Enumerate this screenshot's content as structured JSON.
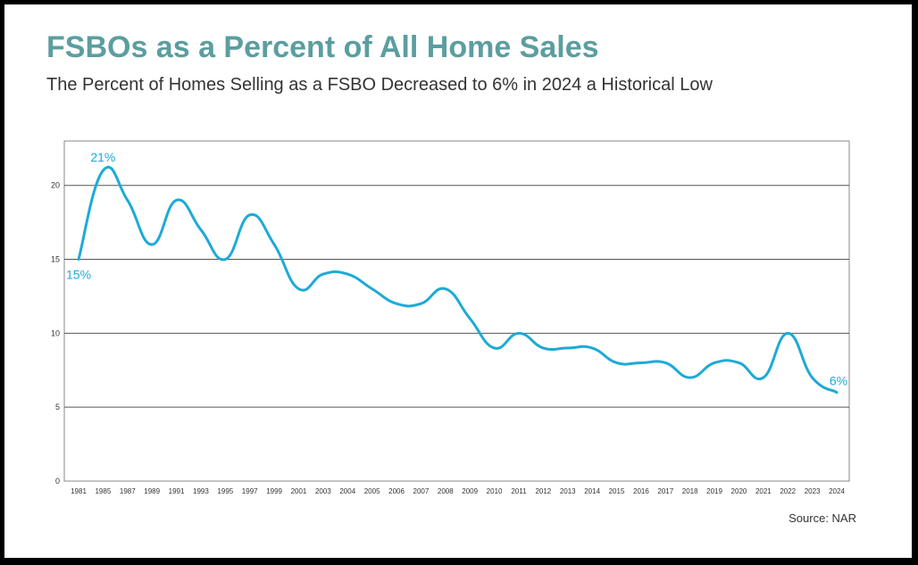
{
  "header": {
    "title": "FSBOs as a Percent of All Home Sales",
    "subtitle": "The Percent of Homes Selling as a FSBO Decreased to 6% in 2024 a Historical Low"
  },
  "footer": {
    "source": "Source: NAR"
  },
  "colors": {
    "title": "#5b9ea0",
    "line": "#1eaad6",
    "grid": "#555555",
    "text": "#333333"
  },
  "chart_data": {
    "type": "line",
    "title": "FSBOs as a Percent of All Home Sales",
    "xlabel": "",
    "ylabel": "",
    "ylim": [
      0,
      23
    ],
    "yticks": [
      0,
      5,
      10,
      15,
      20
    ],
    "grid": true,
    "categories": [
      "1981",
      "1985",
      "1987",
      "1989",
      "1991",
      "1993",
      "1995",
      "1997",
      "1999",
      "2001",
      "2003",
      "2004",
      "2005",
      "2006",
      "2007",
      "2008",
      "2009",
      "2010",
      "2011",
      "2012",
      "2013",
      "2014",
      "2015",
      "2016",
      "2017",
      "2018",
      "2019",
      "2020",
      "2021",
      "2022",
      "2023",
      "2024"
    ],
    "series": [
      {
        "values": [
          15,
          21,
          19,
          16,
          19,
          17,
          15,
          18,
          16,
          13,
          14,
          14,
          13,
          12,
          12,
          13,
          11,
          9,
          10,
          9,
          9,
          9,
          8,
          8,
          8,
          7,
          8,
          8,
          7,
          10,
          7,
          6
        ]
      }
    ],
    "annotations": [
      {
        "index": 0,
        "text": "15%",
        "placement": "below-left"
      },
      {
        "index": 1,
        "text": "21%",
        "placement": "above"
      },
      {
        "index": 31,
        "text": "6%",
        "placement": "above"
      }
    ]
  }
}
